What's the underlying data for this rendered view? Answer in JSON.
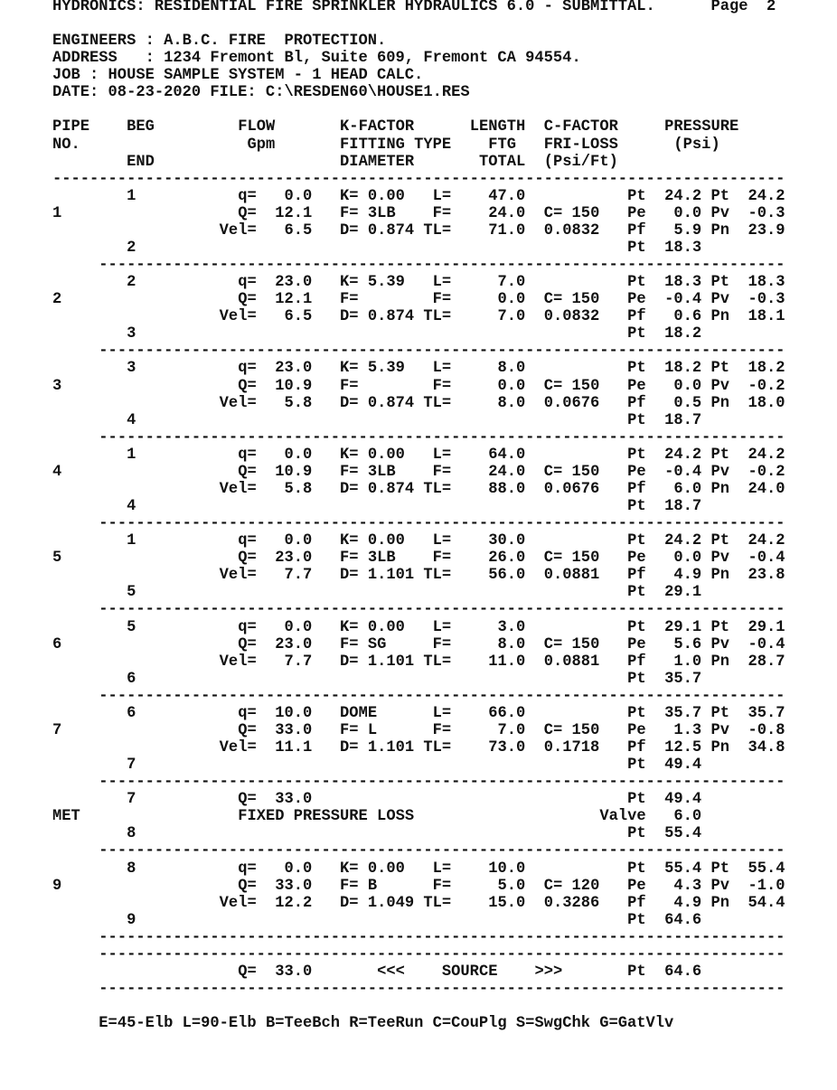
{
  "header": {
    "title": "HYDRONICS: RESIDENTIAL FIRE SPRINKLER HYDRAULICS 6.0 - SUBMITTAL.",
    "page_label": "Page",
    "page_number": "2",
    "engineers": "ENGINEERS : A.B.C. FIRE  PROTECTION.",
    "address": "ADDRESS   : 1234 Fremont Bl, Suite 609, Fremont CA 94554.",
    "job": "JOB : HOUSE SAMPLE SYSTEM - 1 HEAD CALC.",
    "date_file": "DATE: 08-23-2020 FILE: C:\\RESDEN60\\HOUSE1.RES"
  },
  "columns": {
    "pipe": "PIPE",
    "no": "NO.",
    "beg": "BEG",
    "end": "END",
    "flow": "FLOW",
    "gpm": "Gpm",
    "kfactor": "K-FACTOR",
    "fitting_type": "FITTING TYPE",
    "diameter": "DIAMETER",
    "length": "LENGTH",
    "ftg": "FTG",
    "total": "TOTAL",
    "cfactor": "C-FACTOR",
    "friloss": "FRI-LOSS",
    "psi_ft": "(Psi/Ft)",
    "pressure": "PRESSURE",
    "psi": "(Psi)"
  },
  "labels": {
    "q": "q=",
    "Q": "Q=",
    "vel": "Vel=",
    "k": "K=",
    "f": "F=",
    "d": "D=",
    "l": "L=",
    "ftg": "F=",
    "tl": "TL=",
    "c": "C=",
    "pt": "Pt",
    "pe": "Pe",
    "pf": "Pf",
    "pv": "Pv",
    "pn": "Pn"
  },
  "pipes": [
    {
      "no": "1",
      "beg": "1",
      "end": "2",
      "q": "0.0",
      "Q": "12.1",
      "vel": "6.5",
      "k": "0.00",
      "fitting": "3LB",
      "diameter": "0.874",
      "length": "47.0",
      "ftg": "24.0",
      "total": "71.0",
      "c": "150",
      "friloss": "0.0832",
      "pt": "24.2",
      "pt2": "24.2",
      "pe": "0.0",
      "pv": "-0.3",
      "pf": "5.9",
      "pn": "23.9",
      "pt_end": "18.3"
    },
    {
      "no": "2",
      "beg": "2",
      "end": "3",
      "q": "23.0",
      "Q": "12.1",
      "vel": "6.5",
      "k": "5.39",
      "fitting": "",
      "diameter": "0.874",
      "length": "7.0",
      "ftg": "0.0",
      "total": "7.0",
      "c": "150",
      "friloss": "0.0832",
      "pt": "18.3",
      "pt2": "18.3",
      "pe": "-0.4",
      "pv": "-0.3",
      "pf": "0.6",
      "pn": "18.1",
      "pt_end": "18.2"
    },
    {
      "no": "3",
      "beg": "3",
      "end": "4",
      "q": "23.0",
      "Q": "10.9",
      "vel": "5.8",
      "k": "5.39",
      "fitting": "",
      "diameter": "0.874",
      "length": "8.0",
      "ftg": "0.0",
      "total": "8.0",
      "c": "150",
      "friloss": "0.0676",
      "pt": "18.2",
      "pt2": "18.2",
      "pe": "0.0",
      "pv": "-0.2",
      "pf": "0.5",
      "pn": "18.0",
      "pt_end": "18.7"
    },
    {
      "no": "4",
      "beg": "1",
      "end": "4",
      "q": "0.0",
      "Q": "10.9",
      "vel": "5.8",
      "k": "0.00",
      "fitting": "3LB",
      "diameter": "0.874",
      "length": "64.0",
      "ftg": "24.0",
      "total": "88.0",
      "c": "150",
      "friloss": "0.0676",
      "pt": "24.2",
      "pt2": "24.2",
      "pe": "-0.4",
      "pv": "-0.2",
      "pf": "6.0",
      "pn": "24.0",
      "pt_end": "18.7"
    },
    {
      "no": "5",
      "beg": "1",
      "end": "5",
      "q": "0.0",
      "Q": "23.0",
      "vel": "7.7",
      "k": "0.00",
      "fitting": "3LB",
      "diameter": "1.101",
      "length": "30.0",
      "ftg": "26.0",
      "total": "56.0",
      "c": "150",
      "friloss": "0.0881",
      "pt": "24.2",
      "pt2": "24.2",
      "pe": "0.0",
      "pv": "-0.4",
      "pf": "4.9",
      "pn": "23.8",
      "pt_end": "29.1"
    },
    {
      "no": "6",
      "beg": "5",
      "end": "6",
      "q": "0.0",
      "Q": "23.0",
      "vel": "7.7",
      "k": "0.00",
      "fitting": "SG",
      "diameter": "1.101",
      "length": "3.0",
      "ftg": "8.0",
      "total": "11.0",
      "c": "150",
      "friloss": "0.0881",
      "pt": "29.1",
      "pt2": "29.1",
      "pe": "5.6",
      "pv": "-0.4",
      "pf": "1.0",
      "pn": "28.7",
      "pt_end": "35.7"
    },
    {
      "no": "7",
      "beg": "6",
      "end": "7",
      "q": "10.0",
      "Q": "33.0",
      "vel": "11.1",
      "k_note": "DOME",
      "fitting": "L",
      "diameter": "1.101",
      "length": "66.0",
      "ftg": "7.0",
      "total": "73.0",
      "c": "150",
      "friloss": "0.1718",
      "pt": "35.7",
      "pt2": "35.7",
      "pe": "1.3",
      "pv": "-0.8",
      "pf": "12.5",
      "pn": "34.8",
      "pt_end": "49.4"
    }
  ],
  "meter": {
    "no": "MET",
    "beg": "7",
    "end": "8",
    "Q": "33.0",
    "description": "FIXED PRESSURE LOSS",
    "pt": "49.4",
    "valve_label": "Valve",
    "valve": "6.0",
    "pt_end": "55.4"
  },
  "pipe9": {
    "no": "9",
    "beg": "8",
    "end": "9",
    "q": "0.0",
    "Q": "33.0",
    "vel": "12.2",
    "k": "0.00",
    "fitting": "B",
    "diameter": "1.049",
    "length": "10.0",
    "ftg": "5.0",
    "total": "15.0",
    "c": "120",
    "friloss": "0.3286",
    "pt": "55.4",
    "pt2": "55.4",
    "pe": "4.3",
    "pv": "-1.0",
    "pf": "4.9",
    "pn": "54.4",
    "pt_end": "64.6"
  },
  "source": {
    "Q": "33.0",
    "left_arrows": "<<<",
    "label": "SOURCE",
    "right_arrows": ">>>",
    "pt": "64.6"
  },
  "legend": "E=45-Elb L=90-Elb B=TeeBch R=TeeRun C=CouPlg S=SwgChk G=GatVlv"
}
